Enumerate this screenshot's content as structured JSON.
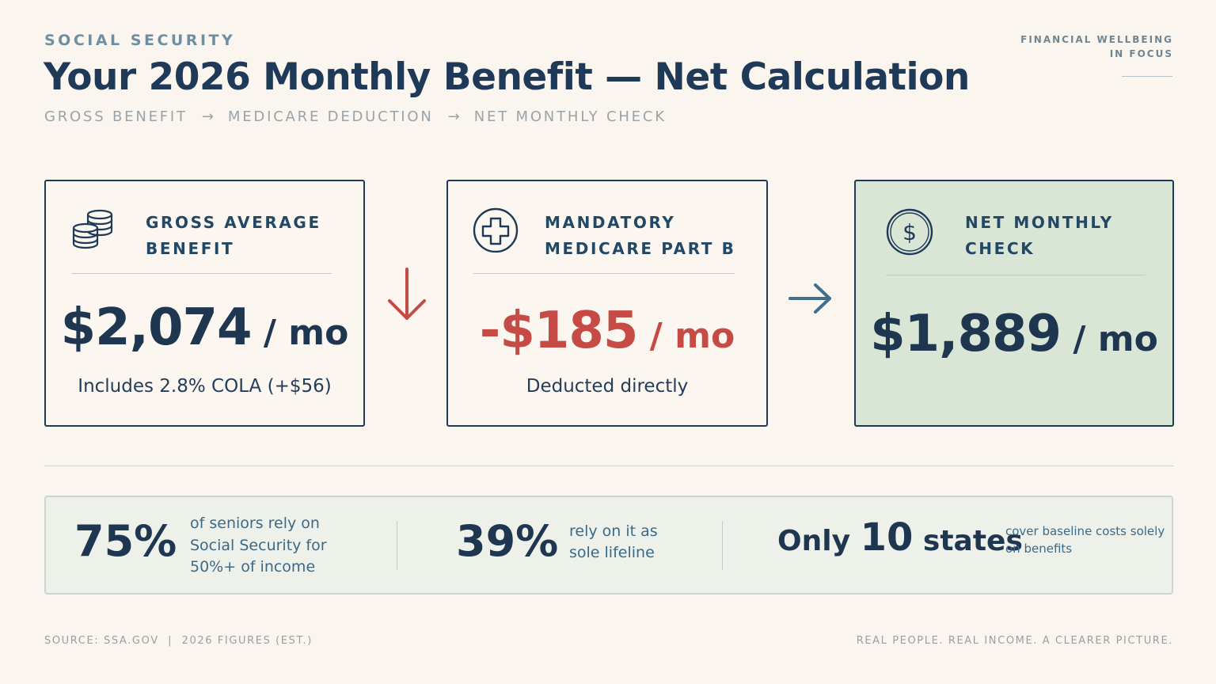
{
  "header": {
    "eyebrow": "SOCIAL SECURITY",
    "title": "Your 2026 Monthly Benefit — Net Calculation",
    "flow": [
      "GROSS BENEFIT",
      "MEDICARE DEDUCTION",
      "NET MONTHLY CHECK"
    ],
    "flow_separator": "→",
    "brand_line1": "FINANCIAL WELLBEING",
    "brand_line2": "IN FOCUS"
  },
  "cards": {
    "gross": {
      "icon": "coins-stack-icon",
      "label_line1": "GROSS AVERAGE",
      "label_line2": "BENEFIT",
      "amount": "$2,074",
      "unit": " / mo",
      "note": "Includes 2.8% COLA (+$56)"
    },
    "medicare": {
      "icon": "medical-cross-icon",
      "label_line1": "MANDATORY",
      "label_line2": "MEDICARE PART B",
      "amount": "-$185",
      "unit": " / mo",
      "note": "Deducted directly"
    },
    "net": {
      "icon": "dollar-coin-icon",
      "label_line1": "NET MONTHLY",
      "label_line2": "CHECK",
      "amount": "$1,889",
      "unit": " / mo"
    }
  },
  "stats": {
    "s1": {
      "value": "75%",
      "text_line1": "of seniors rely on",
      "text_line2": "Social Security for",
      "text_line3": "50%+ of income"
    },
    "s2": {
      "value": "39%",
      "text_line1": "rely on it as",
      "text_line2": "sole lifeline"
    },
    "s3": {
      "prefix": "Only ",
      "value": "10",
      "suffix": " states",
      "text_line1": "cover baseline costs solely",
      "text_line2": "on benefits"
    }
  },
  "footer": {
    "source": "SOURCE: SSA.GOV  |  2026 FIGURES (EST.)",
    "tagline": "REAL PEOPLE. REAL INCOME. A CLEARER PICTURE."
  },
  "colors": {
    "navy": "#1f3a57",
    "deduction_red": "#c64b45",
    "net_green_bg": "#d9e6d6",
    "accent_teal": "#3b6a88",
    "background": "#faf5ee"
  }
}
